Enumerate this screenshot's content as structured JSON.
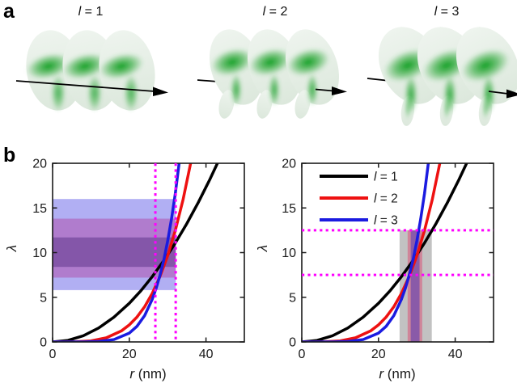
{
  "panel_a": {
    "label": "a",
    "items": [
      {
        "var": "l",
        "eq": " = 1"
      },
      {
        "var": "l",
        "eq": " = 2"
      },
      {
        "var": "l",
        "eq": " = 3"
      }
    ],
    "colors": {
      "surface_pale_green": "#e6eee6",
      "intensity_green": "#169f27",
      "arrow": "#000000"
    }
  },
  "panel_b": {
    "label": "b"
  },
  "chart_data": [
    {
      "id": "left",
      "type": "line",
      "xlabel": "r (nm)",
      "xlabel_parts": {
        "var": "r",
        "rest": " (nm)"
      },
      "ylabel": "λ",
      "xlim": [
        0,
        50
      ],
      "ylim": [
        0,
        20
      ],
      "xticks": [
        0,
        20,
        40
      ],
      "yticks": [
        0,
        5,
        10,
        15,
        20
      ],
      "grid": false,
      "series": [
        {
          "name": "l = 1",
          "color": "#000000",
          "r": [
            0,
            4,
            8,
            12,
            16,
            20,
            23,
            26,
            29,
            32,
            35,
            38,
            41,
            44
          ],
          "lambda": [
            0,
            0.17,
            0.69,
            1.56,
            2.77,
            4.33,
            5.72,
            7.31,
            9.1,
            11.08,
            13.25,
            15.62,
            18.18,
            20.94
          ]
        },
        {
          "name": "l = 2",
          "color": "#ee1111",
          "r": [
            0,
            6,
            10,
            14,
            18,
            20,
            22,
            24,
            26,
            28,
            30,
            32,
            34,
            36,
            38
          ],
          "lambda": [
            0,
            0.02,
            0.12,
            0.46,
            1.25,
            1.91,
            2.79,
            3.95,
            5.44,
            7.32,
            9.65,
            12.49,
            15.91,
            20,
            24.82
          ]
        },
        {
          "name": "l = 3",
          "color": "#1b1be0",
          "r": [
            0,
            8,
            12,
            16,
            20,
            22,
            24,
            26,
            27,
            28,
            29,
            30,
            31,
            32,
            33,
            34
          ],
          "lambda": [
            0,
            0,
            0.05,
            0.26,
            0.99,
            1.75,
            2.95,
            4.78,
            6.0,
            7.45,
            9.18,
            11.29,
            13.74,
            16.63,
            20,
            23.9
          ]
        }
      ],
      "vlines": {
        "color": "#ff00ff",
        "style": "dotted",
        "x": [
          26.8,
          32.1
        ]
      },
      "hbands": [
        {
          "label": "l = 3",
          "color": "#b1aff3",
          "lambda": [
            5.8,
            16.0
          ],
          "r_extent": [
            0,
            32.1
          ]
        },
        {
          "label": "l = 2",
          "color": "#b07ccd",
          "lambda": [
            7.2,
            13.8
          ],
          "r_extent": [
            0,
            32.1
          ]
        },
        {
          "label": "l = 1",
          "color": "#8456a9",
          "lambda": [
            8.4,
            11.7
          ],
          "r_extent": [
            0,
            32.1
          ]
        }
      ]
    },
    {
      "id": "right",
      "type": "line",
      "xlabel": "r (nm)",
      "xlabel_parts": {
        "var": "r",
        "rest": " (nm)"
      },
      "ylabel": "λ",
      "xlim": [
        0,
        50
      ],
      "ylim": [
        0,
        20
      ],
      "xticks": [
        0,
        20,
        40
      ],
      "yticks": [
        0,
        5,
        10,
        15,
        20
      ],
      "grid": false,
      "series": [
        {
          "name": "l = 1",
          "color": "#000000",
          "r": [
            0,
            4,
            8,
            12,
            16,
            20,
            23,
            26,
            29,
            32,
            35,
            38,
            41,
            44
          ],
          "lambda": [
            0,
            0.17,
            0.69,
            1.56,
            2.77,
            4.33,
            5.72,
            7.31,
            9.1,
            11.08,
            13.25,
            15.62,
            18.18,
            20.94
          ]
        },
        {
          "name": "l = 2",
          "color": "#ee1111",
          "r": [
            0,
            6,
            10,
            14,
            18,
            20,
            22,
            24,
            26,
            28,
            30,
            32,
            34,
            36,
            38
          ],
          "lambda": [
            0,
            0.02,
            0.12,
            0.46,
            1.25,
            1.91,
            2.79,
            3.95,
            5.44,
            7.32,
            9.65,
            12.49,
            15.91,
            20,
            24.82
          ]
        },
        {
          "name": "l = 3",
          "color": "#1b1be0",
          "r": [
            0,
            8,
            12,
            16,
            20,
            22,
            24,
            26,
            27,
            28,
            29,
            30,
            31,
            32,
            33,
            34
          ],
          "lambda": [
            0,
            0,
            0.05,
            0.26,
            0.99,
            1.75,
            2.95,
            4.78,
            6.0,
            7.45,
            9.18,
            11.29,
            13.74,
            16.63,
            20,
            23.9
          ]
        }
      ],
      "hlines": {
        "color": "#ff00ff",
        "style": "dotted",
        "y": [
          7.5,
          12.5
        ]
      },
      "vbands": [
        {
          "label": "l = 1",
          "color": "#c2c2c2",
          "r": [
            25.5,
            33.9
          ],
          "lambda_extent": [
            0,
            12.5
          ]
        },
        {
          "label": "l = 2",
          "color": "#cf8599",
          "r": [
            27.6,
            31.4
          ],
          "lambda_extent": [
            0,
            12.5
          ]
        },
        {
          "label": "l = 3",
          "color": "#8a5aa8",
          "r": [
            28.4,
            30.7
          ],
          "lambda_extent": [
            0,
            12.5
          ]
        }
      ],
      "legend": {
        "position": "top-left",
        "entries": [
          {
            "var": "l",
            "eq": " = 1",
            "color": "#000000"
          },
          {
            "var": "l",
            "eq": " = 2",
            "color": "#ee1111"
          },
          {
            "var": "l",
            "eq": " = 3",
            "color": "#1b1be0"
          }
        ]
      }
    }
  ]
}
